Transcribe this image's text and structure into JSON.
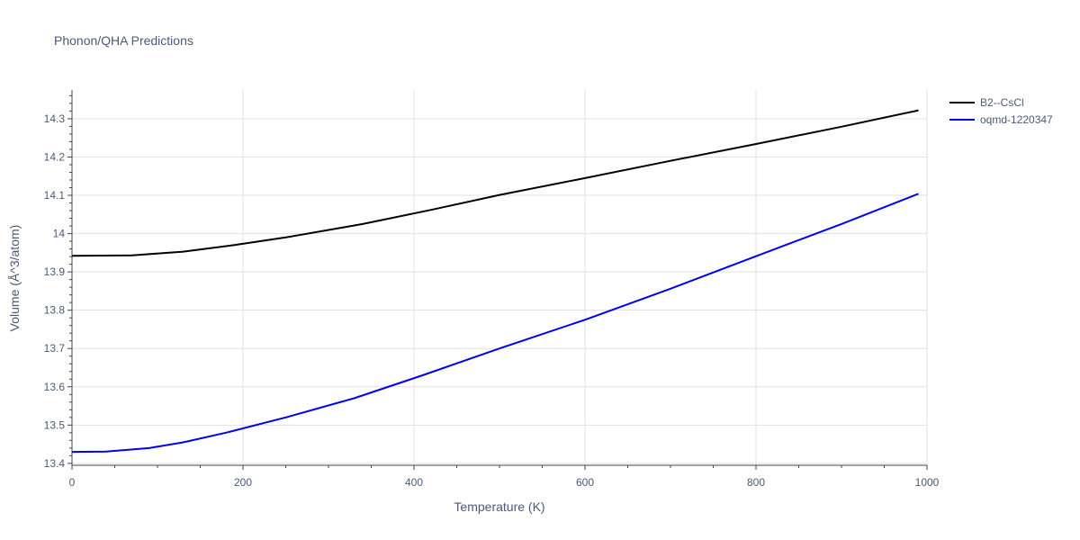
{
  "chart_data": {
    "type": "line",
    "title": "Phonon/QHA Predictions",
    "xlabel": "Temperature (K)",
    "ylabel": "Volume (Å^3/atom)",
    "xlim": [
      0,
      1000
    ],
    "ylim": [
      13.395,
      14.375
    ],
    "x_ticks": [
      0,
      200,
      400,
      600,
      800,
      1000
    ],
    "y_ticks": [
      13.4,
      13.5,
      13.6,
      13.7,
      13.8,
      13.9,
      14.0,
      14.1,
      14.2,
      14.3
    ],
    "y_tick_labels": [
      "13.4",
      "13.5",
      "13.6",
      "13.7",
      "13.8",
      "13.9",
      "14",
      "14.1",
      "14.2",
      "14.3"
    ],
    "grid": true,
    "legend_position": "top-right",
    "series": [
      {
        "name": "B2--CsCl",
        "color": "#000000",
        "x": [
          0,
          70,
          130,
          190,
          250,
          340,
          420,
          500,
          600,
          700,
          800,
          900,
          990
        ],
        "y": [
          13.942,
          13.943,
          13.953,
          13.97,
          13.99,
          14.025,
          14.062,
          14.101,
          14.145,
          14.19,
          14.234,
          14.279,
          14.322
        ]
      },
      {
        "name": "oqmd-1220347",
        "color": "#0000ee",
        "x": [
          0,
          40,
          90,
          130,
          180,
          250,
          330,
          410,
          500,
          600,
          700,
          800,
          900,
          990
        ],
        "y": [
          13.43,
          13.431,
          13.44,
          13.455,
          13.48,
          13.52,
          13.57,
          13.63,
          13.7,
          13.775,
          13.856,
          13.941,
          14.025,
          14.104
        ]
      }
    ]
  }
}
